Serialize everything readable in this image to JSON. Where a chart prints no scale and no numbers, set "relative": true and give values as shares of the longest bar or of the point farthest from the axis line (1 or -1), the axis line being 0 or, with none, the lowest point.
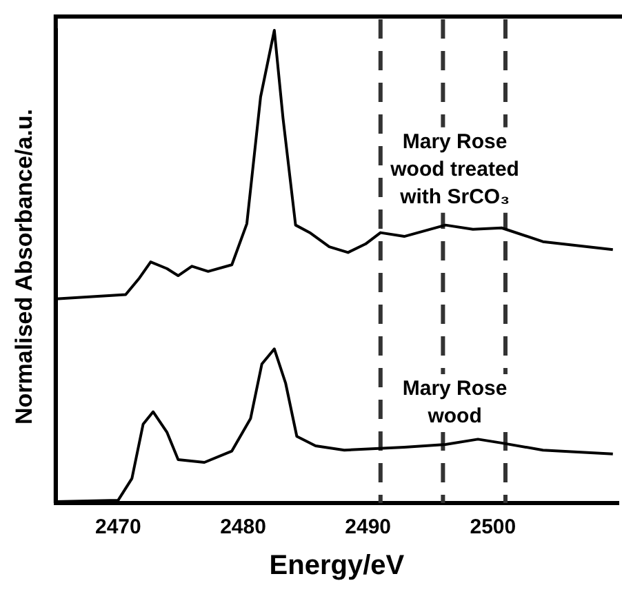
{
  "chart_data": {
    "type": "line",
    "relative": true,
    "xlabel": "Energy/eV",
    "ylabel": "Normalised Absorbance/a.u.",
    "xlim": [
      2465,
      2510
    ],
    "xticks": [
      2470,
      2480,
      2490,
      2500
    ],
    "grid": false,
    "legend": false,
    "marker": "none",
    "line_style": "solid",
    "series": [
      {
        "name": "Mary Rose wood treated with SrCO₃",
        "color": "#000000",
        "x": [
          2465,
          2470.6,
          2471.7,
          2472.6,
          2473.9,
          2474.8,
          2475.9,
          2477.2,
          2479.1,
          2480.3,
          2481.4,
          2482.5,
          2483.2,
          2484.2,
          2485.4,
          2486.9,
          2488.4,
          2489.8,
          2491.0,
          2492.9,
          2496.2,
          2498.4,
          2500.7,
          2504,
          2509.6
        ],
        "values": [
          0.432,
          0.441,
          0.476,
          0.51,
          0.496,
          0.481,
          0.501,
          0.49,
          0.504,
          0.591,
          0.859,
          1.0,
          0.813,
          0.588,
          0.571,
          0.542,
          0.53,
          0.548,
          0.572,
          0.564,
          0.588,
          0.579,
          0.582,
          0.553,
          0.536
        ]
      },
      {
        "name": "Mary Rose wood",
        "color": "#000000",
        "x": [
          2465,
          2470,
          2471.1,
          2472,
          2472.8,
          2473.9,
          2474.8,
          2476.9,
          2479.1,
          2480.6,
          2481.5,
          2482.5,
          2483.4,
          2484.3,
          2485.8,
          2488.1,
          2492.9,
          2496.2,
          2498.8,
          2500.7,
          2504,
          2509.6
        ],
        "values": [
          0.003,
          0.006,
          0.052,
          0.167,
          0.193,
          0.15,
          0.092,
          0.086,
          0.11,
          0.179,
          0.294,
          0.326,
          0.254,
          0.141,
          0.121,
          0.112,
          0.118,
          0.124,
          0.135,
          0.127,
          0.112,
          0.104
        ]
      }
    ],
    "ref_lines": [
      {
        "axis": "x",
        "value": 2491,
        "color": "#333333",
        "line_style": "dashed"
      },
      {
        "axis": "x",
        "value": 2496,
        "color": "#333333",
        "line_style": "dashed"
      },
      {
        "axis": "x",
        "value": 2501,
        "color": "#333333",
        "line_style": "dashed"
      }
    ]
  }
}
